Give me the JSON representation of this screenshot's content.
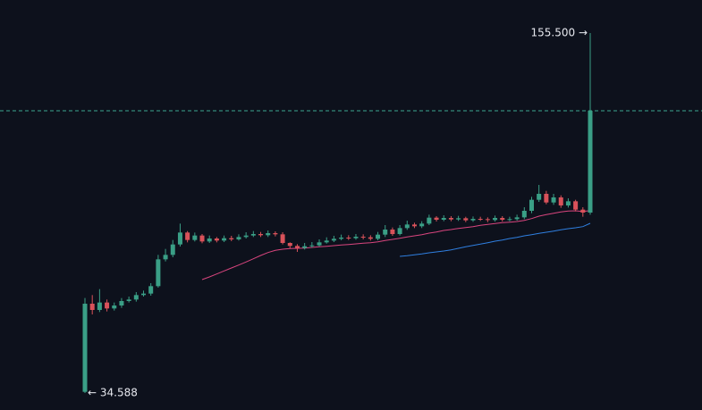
{
  "chart_data": {
    "type": "candlestick",
    "background": "#0d111c",
    "up_color": "#3a9f86",
    "down_color": "#d9525a",
    "ylim": [
      28.9,
      166.6
    ],
    "candles": {
      "open": [
        35.0,
        64.6,
        62.5,
        65.0,
        63.0,
        64.0,
        65.5,
        66.0,
        67.5,
        68.0,
        70.5,
        79.5,
        81.0,
        84.5,
        88.5,
        86.0,
        87.5,
        85.5,
        86.5,
        85.8,
        86.6,
        86.2,
        87.0,
        87.5,
        88.0,
        87.6,
        88.3,
        87.9,
        85.0,
        84.0,
        83.3,
        83.9,
        84.2,
        85.2,
        85.8,
        86.4,
        86.8,
        86.6,
        87.1,
        86.9,
        86.4,
        87.8,
        89.5,
        88.0,
        90.0,
        91.2,
        90.6,
        91.5,
        93.5,
        92.8,
        93.4,
        92.9,
        93.3,
        92.6,
        93.1,
        93.0,
        92.7,
        93.4,
        92.8,
        93.0,
        93.6,
        95.8,
        99.5,
        101.5,
        98.6,
        100.3,
        97.6,
        99.0,
        96.2,
        95.2
      ],
      "high": [
        66.5,
        67.5,
        69.5,
        66.0,
        65.0,
        66.5,
        67.0,
        68.5,
        69.0,
        71.5,
        81.0,
        83.0,
        86.0,
        91.5,
        89.0,
        88.5,
        88.0,
        87.5,
        87.0,
        87.5,
        87.4,
        87.9,
        88.6,
        89.0,
        88.7,
        89.2,
        88.9,
        88.6,
        85.2,
        84.6,
        85.0,
        85.3,
        86.2,
        86.9,
        87.4,
        87.8,
        87.6,
        88.0,
        87.9,
        87.6,
        88.7,
        91.0,
        90.2,
        91.0,
        92.5,
        91.8,
        92.3,
        94.5,
        94.0,
        94.3,
        94.0,
        94.1,
        93.8,
        93.9,
        93.8,
        93.6,
        94.2,
        94.0,
        93.8,
        94.5,
        97.0,
        100.5,
        104.5,
        102.5,
        101.5,
        101.0,
        100.0,
        99.5,
        97.0,
        155.5
      ],
      "low": [
        34.588,
        61.0,
        61.8,
        62.0,
        62.3,
        63.2,
        65.0,
        65.3,
        67.0,
        67.3,
        70.0,
        78.8,
        80.2,
        83.8,
        85.2,
        85.5,
        84.9,
        85.0,
        85.2,
        85.3,
        85.6,
        85.8,
        86.5,
        87.0,
        87.0,
        87.0,
        87.2,
        84.5,
        83.2,
        82.0,
        82.8,
        83.4,
        83.8,
        84.8,
        85.3,
        85.9,
        86.0,
        86.1,
        86.2,
        85.8,
        85.9,
        87.0,
        87.4,
        87.5,
        89.4,
        90.0,
        90.0,
        91.0,
        92.2,
        92.3,
        92.3,
        92.4,
        92.0,
        92.1,
        92.4,
        92.0,
        92.2,
        92.2,
        92.3,
        92.5,
        93.0,
        95.0,
        98.8,
        98.0,
        97.8,
        96.8,
        96.9,
        95.6,
        93.8,
        94.5
      ],
      "close": [
        64.6,
        62.5,
        65.0,
        63.0,
        64.0,
        65.5,
        66.0,
        67.5,
        68.0,
        70.5,
        79.5,
        81.0,
        84.5,
        88.5,
        86.0,
        87.5,
        85.5,
        86.5,
        85.8,
        86.6,
        86.2,
        87.0,
        87.5,
        88.0,
        87.6,
        88.3,
        87.9,
        85.0,
        84.0,
        83.3,
        83.9,
        84.2,
        85.2,
        85.8,
        86.4,
        86.8,
        86.6,
        87.1,
        86.9,
        86.4,
        87.8,
        89.5,
        88.0,
        90.0,
        91.2,
        90.6,
        91.5,
        93.5,
        92.8,
        93.4,
        92.9,
        93.3,
        92.6,
        93.1,
        93.0,
        92.7,
        93.4,
        92.8,
        93.0,
        93.6,
        95.8,
        99.5,
        101.5,
        98.6,
        100.3,
        97.6,
        99.0,
        96.2,
        95.2,
        129.4
      ]
    },
    "series": [
      {
        "color": "#d9457e",
        "values": [
          null,
          null,
          null,
          null,
          null,
          null,
          null,
          null,
          null,
          null,
          null,
          null,
          null,
          null,
          null,
          null,
          72.7,
          73.6,
          74.6,
          75.6,
          76.6,
          77.6,
          78.6,
          79.7,
          80.8,
          81.8,
          82.5,
          82.9,
          83.1,
          83.2,
          83.3,
          83.5,
          83.7,
          83.9,
          84.1,
          84.3,
          84.5,
          84.7,
          84.9,
          85.1,
          85.4,
          85.8,
          86.2,
          86.6,
          87.0,
          87.4,
          87.8,
          88.3,
          88.7,
          89.2,
          89.5,
          89.9,
          90.2,
          90.5,
          90.9,
          91.2,
          91.5,
          91.8,
          92.0,
          92.2,
          92.6,
          93.2,
          94.0,
          94.5,
          95.0,
          95.4,
          95.7,
          95.8,
          95.6,
          95.9
        ]
      },
      {
        "color": "#2f7fe0",
        "values": [
          null,
          null,
          null,
          null,
          null,
          null,
          null,
          null,
          null,
          null,
          null,
          null,
          null,
          null,
          null,
          null,
          null,
          null,
          null,
          null,
          null,
          null,
          null,
          null,
          null,
          null,
          null,
          null,
          null,
          null,
          null,
          null,
          null,
          null,
          null,
          null,
          null,
          null,
          null,
          null,
          null,
          null,
          null,
          80.5,
          80.7,
          81.0,
          81.3,
          81.7,
          82.0,
          82.3,
          82.7,
          83.2,
          83.7,
          84.2,
          84.6,
          85.1,
          85.6,
          86.0,
          86.5,
          86.9,
          87.4,
          87.8,
          88.2,
          88.6,
          89.0,
          89.4,
          89.8,
          90.1,
          90.5,
          91.6
        ]
      }
    ],
    "price_line": {
      "value": 129.4,
      "color": "#3aa891",
      "dashed": true
    },
    "high_label": {
      "value": 155.5,
      "label": "155.500 →"
    },
    "low_label": {
      "value": 34.588,
      "label": "← 34.588"
    }
  }
}
